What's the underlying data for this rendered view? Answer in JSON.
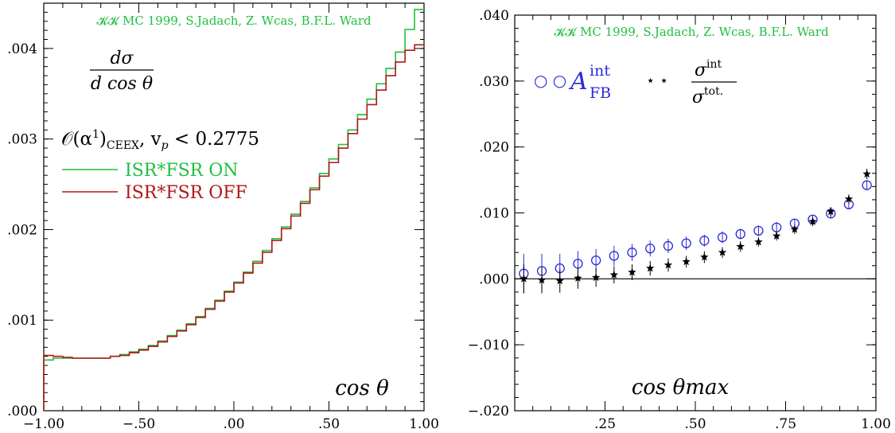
{
  "chart_data": [
    {
      "type": "line",
      "title": "dσ / d cos θ",
      "title_num": "dσ",
      "title_den": "d cos θ",
      "credit": "𝓚𝓚 MC 1999, S.Jadach, Z. Wcas, B.F.L. Ward",
      "subtitle": "𝒪(α¹)CEEX, v_p < 0.2775",
      "subtitle_parts": {
        "main": "𝒪(α",
        "sup": "1",
        "close": ")",
        "sub": "CEEX",
        "rest": ", v",
        "vsub": "p",
        "tail": " < 0.2775"
      },
      "xlabel": "cos θ",
      "xlim": [
        -1.0,
        1.0
      ],
      "ylim": [
        0.0,
        0.0045
      ],
      "x_ticks": [
        -1.0,
        -0.5,
        0.0,
        0.5,
        1.0
      ],
      "x_tick_labels": [
        "−1.00",
        "−.50",
        ".00",
        ".50",
        "1.00"
      ],
      "y_ticks": [
        0.0,
        0.001,
        0.002,
        0.003,
        0.004
      ],
      "y_tick_labels": [
        ".000",
        ".001",
        ".002",
        ".003",
        ".004"
      ],
      "bin_edges": [
        -1.0,
        -0.95,
        -0.9,
        -0.85,
        -0.8,
        -0.75,
        -0.7,
        -0.65,
        -0.6,
        -0.55,
        -0.5,
        -0.45,
        -0.4,
        -0.35,
        -0.3,
        -0.25,
        -0.2,
        -0.15,
        -0.1,
        -0.05,
        0.0,
        0.05,
        0.1,
        0.15,
        0.2,
        0.25,
        0.3,
        0.35,
        0.4,
        0.45,
        0.5,
        0.55,
        0.6,
        0.65,
        0.7,
        0.75,
        0.8,
        0.85,
        0.9,
        0.95,
        1.0
      ],
      "series": [
        {
          "name": "ISR*FSR ON",
          "color": "#1fbf3f",
          "values": [
            0.00056,
            0.00058,
            0.00058,
            0.00058,
            0.00058,
            0.00058,
            0.00058,
            0.0006,
            0.00062,
            0.00065,
            0.00068,
            0.00072,
            0.00077,
            0.00083,
            0.00089,
            0.00096,
            0.00104,
            0.00113,
            0.00122,
            0.00132,
            0.00142,
            0.00153,
            0.00165,
            0.00177,
            0.0019,
            0.00203,
            0.00217,
            0.00231,
            0.00246,
            0.00262,
            0.00278,
            0.00294,
            0.0031,
            0.00327,
            0.00344,
            0.00361,
            0.00378,
            0.00396,
            0.00421,
            0.00443
          ]
        },
        {
          "name": "ISR*FSR OFF",
          "color": "#b01818",
          "values": [
            0.00061,
            0.0006,
            0.00059,
            0.00058,
            0.00058,
            0.00058,
            0.00058,
            0.0006,
            0.00061,
            0.00064,
            0.00067,
            0.00071,
            0.00076,
            0.00082,
            0.00088,
            0.00095,
            0.00103,
            0.00112,
            0.00121,
            0.00131,
            0.00141,
            0.00152,
            0.00163,
            0.00175,
            0.00188,
            0.00201,
            0.00215,
            0.00229,
            0.00244,
            0.00259,
            0.00274,
            0.0029,
            0.00306,
            0.00322,
            0.00338,
            0.00354,
            0.0037,
            0.00385,
            0.00398,
            0.00404
          ]
        }
      ]
    },
    {
      "type": "scatter",
      "credit": "𝓚𝓚 MC 1999, S.Jadach, Z. Wcas, B.F.L. Ward",
      "xlabel": "cos θmax",
      "xlim": [
        0.0,
        1.0
      ],
      "ylim": [
        -0.02,
        0.04
      ],
      "x_ticks": [
        0.25,
        0.5,
        0.75,
        1.0
      ],
      "x_tick_labels": [
        ".25",
        ".50",
        ".75",
        "1.00"
      ],
      "y_ticks": [
        -0.02,
        -0.01,
        0.0,
        0.01,
        0.02,
        0.03,
        0.04
      ],
      "y_tick_labels": [
        "−.020",
        "−.010",
        ".000",
        ".010",
        ".020",
        ".030",
        ".040"
      ],
      "zero_line": true,
      "x": [
        0.025,
        0.075,
        0.125,
        0.175,
        0.225,
        0.275,
        0.325,
        0.375,
        0.425,
        0.475,
        0.525,
        0.575,
        0.625,
        0.675,
        0.725,
        0.775,
        0.825,
        0.875,
        0.925,
        0.975
      ],
      "series": [
        {
          "name": "A_FB^int",
          "legend_main": "A",
          "legend_sup": "int",
          "legend_sub": "FB",
          "legend_marker": "○ ○",
          "color": "#2a2ad8",
          "marker": "circle",
          "values": [
            0.0008,
            0.0012,
            0.0016,
            0.0023,
            0.0028,
            0.0035,
            0.004,
            0.0046,
            0.005,
            0.0054,
            0.0058,
            0.0063,
            0.0068,
            0.0073,
            0.0078,
            0.0084,
            0.009,
            0.0099,
            0.0113,
            0.0142
          ],
          "errors": [
            0.003,
            0.0026,
            0.0022,
            0.0019,
            0.0017,
            0.0015,
            0.0013,
            0.0012,
            0.0011,
            0.001,
            0.0009,
            0.0009,
            0.0008,
            0.0008,
            0.0008,
            0.0007,
            0.0007,
            0.0007,
            0.0007,
            0.0007
          ]
        },
        {
          "name": "σ^int / σ^tot.",
          "legend_num": "σ",
          "legend_num_sup": "int",
          "legend_den": "σ",
          "legend_den_sup": "tot.",
          "legend_marker": "⋆ ⋆",
          "color": "#000000",
          "marker": "star",
          "values": [
            0.0,
            -0.0002,
            -0.0003,
            0.0001,
            0.0002,
            0.0006,
            0.001,
            0.0016,
            0.0021,
            0.0026,
            0.0033,
            0.004,
            0.0049,
            0.0056,
            0.0065,
            0.0075,
            0.0087,
            0.0102,
            0.0121,
            0.0159
          ],
          "errors": [
            0.0022,
            0.002,
            0.0018,
            0.0016,
            0.0014,
            0.0013,
            0.0012,
            0.0011,
            0.001,
            0.0009,
            0.0009,
            0.0008,
            0.0008,
            0.0007,
            0.0007,
            0.0007,
            0.0007,
            0.0007,
            0.0007,
            0.0008
          ]
        }
      ]
    }
  ]
}
